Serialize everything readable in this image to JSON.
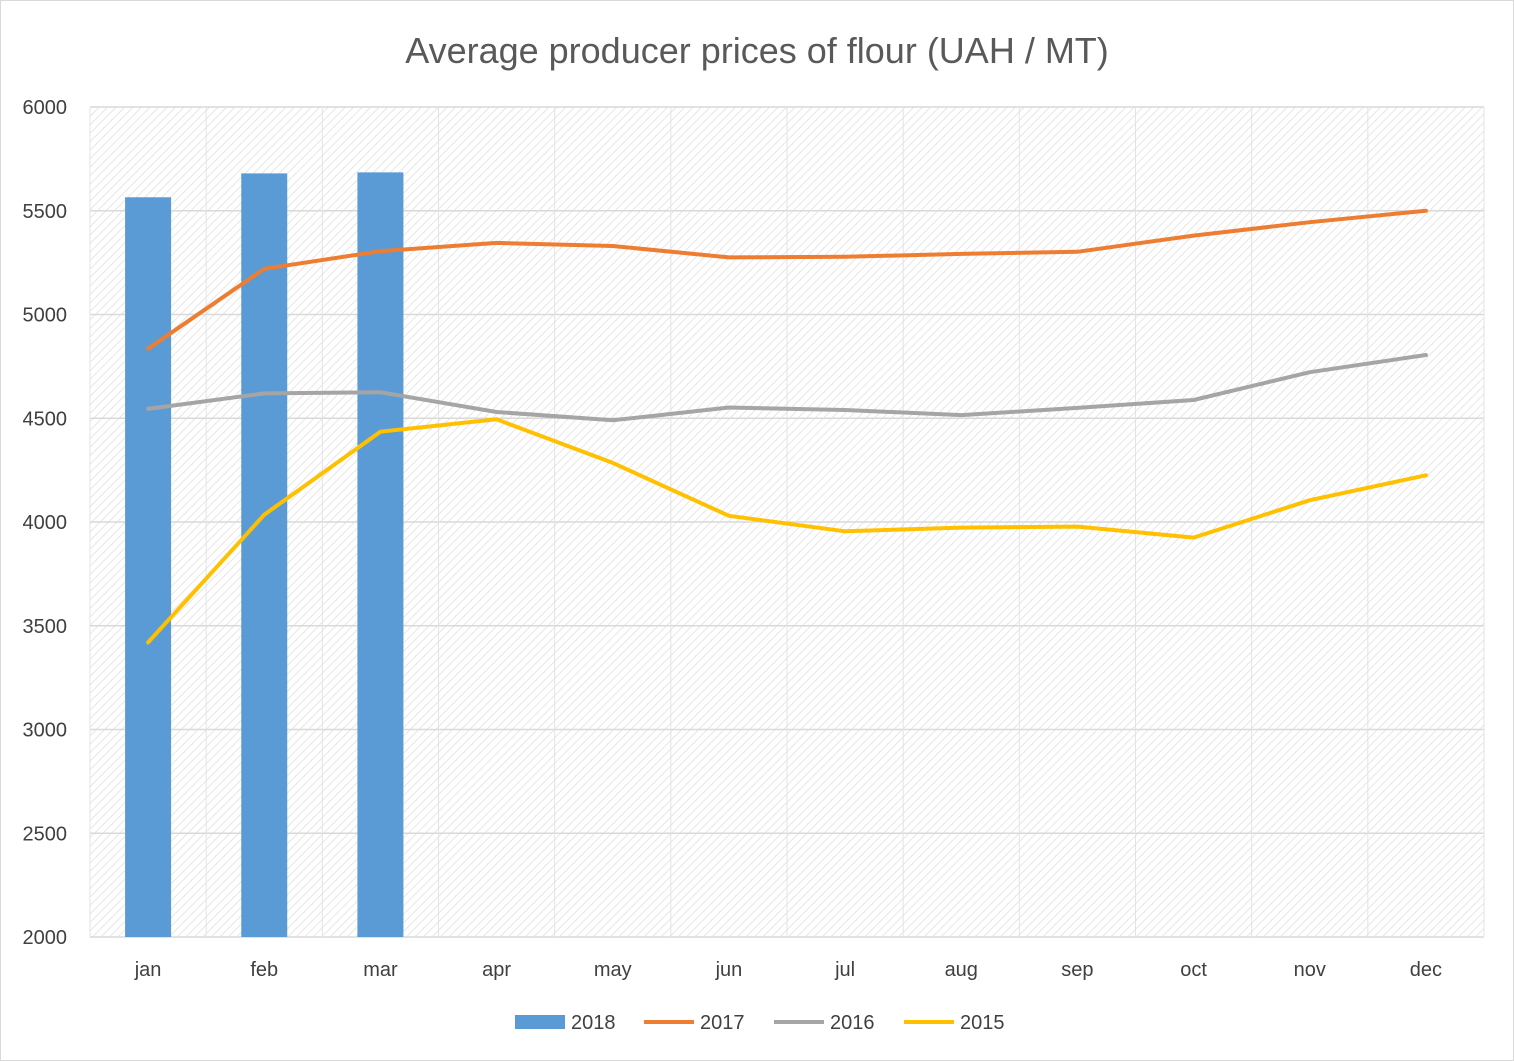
{
  "chart_data": {
    "type": "bar",
    "title": "Average producer prices of flour (UAH / MT)",
    "xlabel": "",
    "ylabel": "",
    "categories": [
      "jan",
      "feb",
      "mar",
      "apr",
      "may",
      "jun",
      "jul",
      "aug",
      "sep",
      "oct",
      "nov",
      "dec"
    ],
    "ylim": [
      2000,
      6000
    ],
    "yticks": [
      2000,
      2500,
      3000,
      3500,
      4000,
      4500,
      5000,
      5500,
      6000
    ],
    "grid": true,
    "legend_position": "bottom",
    "series": [
      {
        "name": "2018",
        "kind": "bar",
        "color": "#5b9bd5",
        "values": [
          5565,
          5680,
          5685,
          null,
          null,
          null,
          null,
          null,
          null,
          null,
          null,
          null
        ]
      },
      {
        "name": "2017",
        "kind": "line",
        "color": "#ed7d31",
        "values": [
          4835,
          5220,
          5305,
          5345,
          5330,
          5275,
          5278,
          5292,
          5302,
          5380,
          5445,
          5500
        ]
      },
      {
        "name": "2016",
        "kind": "line",
        "color": "#a5a5a5",
        "values": [
          4545,
          4620,
          4625,
          4530,
          4490,
          4552,
          4540,
          4515,
          4550,
          4588,
          4722,
          4805
        ]
      },
      {
        "name": "2015",
        "kind": "line",
        "color": "#ffc000",
        "values": [
          3420,
          4035,
          4435,
          4495,
          4285,
          4030,
          3955,
          3973,
          3978,
          3925,
          4105,
          4225
        ]
      }
    ]
  }
}
